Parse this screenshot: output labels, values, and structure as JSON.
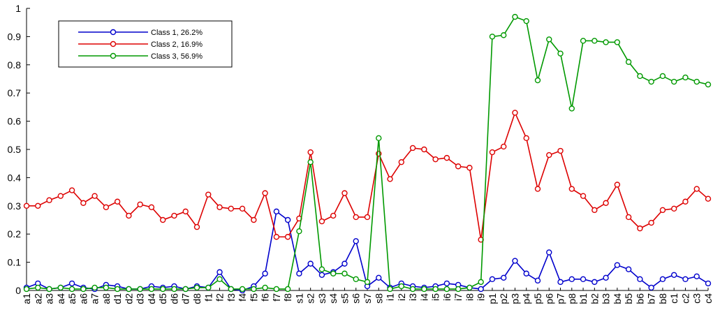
{
  "chart_data": {
    "type": "line",
    "categories": [
      "a1",
      "a2",
      "a3",
      "a4",
      "a5",
      "a6",
      "a7",
      "a8",
      "d1",
      "d2",
      "d3",
      "d4",
      "d5",
      "d6",
      "d7",
      "d8",
      "f1",
      "f2",
      "f3",
      "f4",
      "f5",
      "f6",
      "f7",
      "f8",
      "s1",
      "s2",
      "s3",
      "s4",
      "s5",
      "s6",
      "s7",
      "s8",
      "i1",
      "i2",
      "i3",
      "i4",
      "i5",
      "i6",
      "i7",
      "i8",
      "i9",
      "p1",
      "p2",
      "p3",
      "p4",
      "p5",
      "p6",
      "p7",
      "p8",
      "b1",
      "b2",
      "b3",
      "b4",
      "b5",
      "b6",
      "b7",
      "b8",
      "c1",
      "c2",
      "c3",
      "c4"
    ],
    "series": [
      {
        "name": "Class 1, 26.2%",
        "color": "#0000cc",
        "values": [
          0.01,
          0.025,
          0.005,
          0.01,
          0.025,
          0.01,
          0.005,
          0.02,
          0.015,
          0.005,
          0.005,
          0.015,
          0.01,
          0.015,
          0.005,
          0.015,
          0.01,
          0.065,
          0.005,
          0.0,
          0.015,
          0.06,
          0.28,
          0.25,
          0.06,
          0.095,
          0.055,
          0.065,
          0.095,
          0.175,
          0.015,
          0.045,
          0.01,
          0.025,
          0.015,
          0.01,
          0.015,
          0.025,
          0.02,
          0.01,
          0.005,
          0.04,
          0.045,
          0.105,
          0.06,
          0.035,
          0.135,
          0.03,
          0.04,
          0.04,
          0.03,
          0.045,
          0.09,
          0.075,
          0.04,
          0.01,
          0.04,
          0.055,
          0.04,
          0.05,
          0.025
        ]
      },
      {
        "name": "Class 2, 16.9%",
        "color": "#dd0000",
        "values": [
          0.3,
          0.3,
          0.32,
          0.335,
          0.355,
          0.31,
          0.335,
          0.295,
          0.315,
          0.265,
          0.305,
          0.295,
          0.25,
          0.265,
          0.28,
          0.225,
          0.34,
          0.295,
          0.29,
          0.29,
          0.25,
          0.345,
          0.19,
          0.19,
          0.255,
          0.49,
          0.245,
          0.265,
          0.345,
          0.26,
          0.26,
          0.485,
          0.395,
          0.455,
          0.505,
          0.5,
          0.465,
          0.47,
          0.44,
          0.435,
          0.18,
          0.49,
          0.51,
          0.63,
          0.54,
          0.36,
          0.48,
          0.495,
          0.36,
          0.335,
          0.285,
          0.31,
          0.375,
          0.26,
          0.22,
          0.24,
          0.285,
          0.29,
          0.315,
          0.36,
          0.325
        ]
      },
      {
        "name": "Class 3, 56.9%",
        "color": "#009900",
        "values": [
          0.005,
          0.01,
          0.005,
          0.01,
          0.005,
          0.005,
          0.01,
          0.01,
          0.005,
          0.005,
          0.005,
          0.005,
          0.005,
          0.005,
          0.005,
          0.01,
          0.01,
          0.04,
          0.005,
          0.005,
          0.005,
          0.01,
          0.005,
          0.005,
          0.21,
          0.455,
          0.075,
          0.06,
          0.06,
          0.04,
          0.03,
          0.54,
          0.005,
          0.015,
          0.005,
          0.005,
          0.005,
          0.005,
          0.005,
          0.01,
          0.03,
          0.9,
          0.905,
          0.97,
          0.955,
          0.745,
          0.89,
          0.84,
          0.645,
          0.885,
          0.885,
          0.88,
          0.88,
          0.81,
          0.76,
          0.74,
          0.76,
          0.74,
          0.755,
          0.74,
          0.73
        ]
      }
    ],
    "ylim": [
      0,
      1
    ],
    "yticks": [
      0,
      0.1,
      0.2,
      0.3,
      0.4,
      0.5,
      0.6,
      0.7,
      0.8,
      0.9,
      1
    ],
    "legend": "upper left",
    "grid": false
  }
}
